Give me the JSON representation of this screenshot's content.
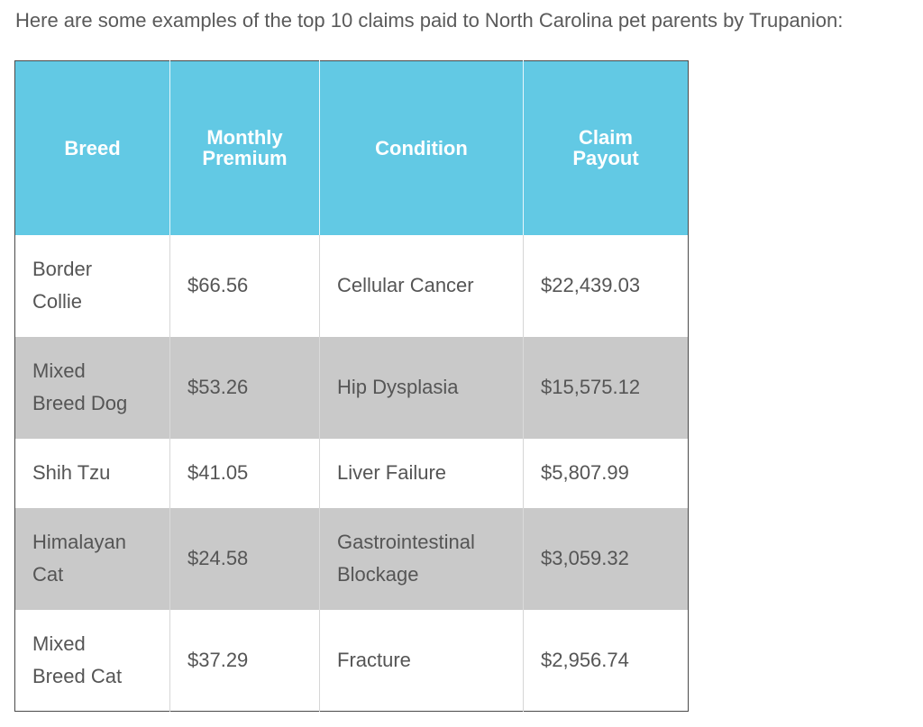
{
  "intro_text": "Here are some examples of the top 10 claims paid to North Carolina pet parents by Trupanion:",
  "table": {
    "headers": {
      "breed_line1": "Breed",
      "premium_line1": "Monthly",
      "premium_line2": "Premium",
      "condition_line1": "Condition",
      "payout_line1": "Claim",
      "payout_line2": "Payout"
    },
    "rows": [
      {
        "breed_line1": "Border",
        "breed_line2": "Collie",
        "premium": "$66.56",
        "condition_line1": "Cellular Cancer",
        "condition_line2": "",
        "payout": "$22,439.03"
      },
      {
        "breed_line1": "Mixed",
        "breed_line2": "Breed Dog",
        "premium": "$53.26",
        "condition_line1": "Hip Dysplasia",
        "condition_line2": "",
        "payout": "$15,575.12"
      },
      {
        "breed_line1": "Shih Tzu",
        "breed_line2": "",
        "premium": "$41.05",
        "condition_line1": "Liver Failure",
        "condition_line2": "",
        "payout": "$5,807.99"
      },
      {
        "breed_line1": "Himalayan",
        "breed_line2": "Cat",
        "premium": "$24.58",
        "condition_line1": "Gastrointestinal",
        "condition_line2": "Blockage",
        "payout": "$3,059.32"
      },
      {
        "breed_line1": "Mixed",
        "breed_line2": "Breed Cat",
        "premium": "$37.29",
        "condition_line1": "Fracture",
        "condition_line2": "",
        "payout": "$2,956.74"
      }
    ],
    "colors": {
      "header_bg": "#62c9e4",
      "header_text": "#ffffff",
      "shaded_row": "#c9c9c9",
      "body_text": "#555555"
    }
  }
}
